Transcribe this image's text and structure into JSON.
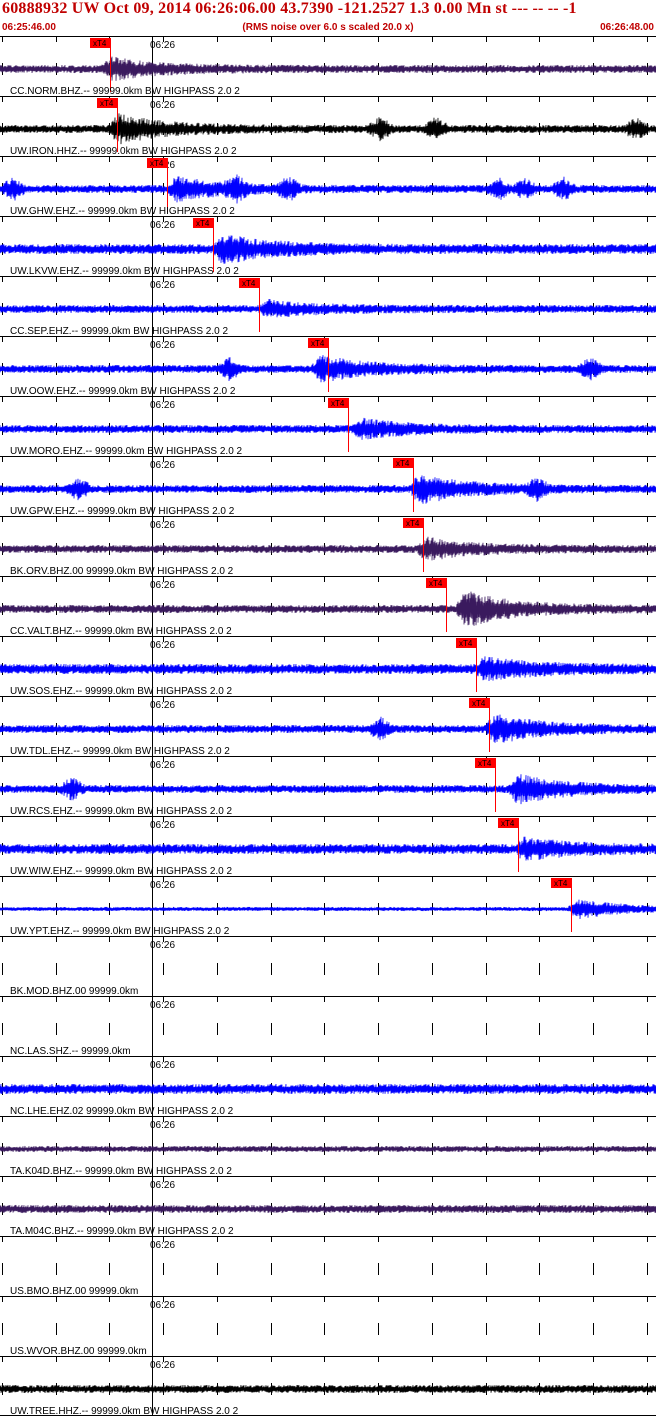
{
  "header": {
    "title": "60888932 UW Oct 09, 2014 06:26:06.00   43.7390 -121.2527  1.3 0.00 Mn st --- -- --  -1",
    "start_time": "06:25:46.00",
    "end_time": "06:26:48.00",
    "note": "(RMS noise over 6.0 s scaled 20.0 x)"
  },
  "chart_data": {
    "type": "line",
    "title": "60888932 UW Oct 09, 2014 06:26:06.00   43.7390 -121.2527  1.3 0.00 Mn st --- -- --  -1",
    "x_range": [
      "06:25:46.00",
      "06:26:48.00"
    ],
    "minute_tick_label": "06:26",
    "pick_label": "xT4",
    "colors": {
      "header": "#c00000",
      "pick": "#ff0000",
      "blue": "#0000ff",
      "purple": "#3a1a5e",
      "black": "#000000",
      "grid": "#000000"
    },
    "traces": [
      {
        "label": "CC.NORM.BHZ.-- 99999.0km BW  HIGHPASS  2.0  2",
        "color": "purple",
        "pick_x": 0.168,
        "amp": 4,
        "event_x": 0.16,
        "event_amp": 10,
        "bursts": []
      },
      {
        "label": "UW.IRON.HHZ.-- 99999.0km BW  HIGHPASS  2.0  2",
        "color": "black",
        "pick_x": 0.178,
        "amp": 4,
        "event_x": 0.17,
        "event_amp": 14,
        "bursts": [
          0.58,
          0.665,
          0.97
        ]
      },
      {
        "label": "UW.GHW.EHZ.-- 99999.0km BW  HIGHPASS  2.0  2",
        "color": "blue",
        "pick_x": 0.255,
        "amp": 4,
        "event_x": 0.26,
        "event_amp": 11,
        "bursts": [
          0.02,
          0.36,
          0.44,
          0.76,
          0.8,
          0.86
        ]
      },
      {
        "label": "UW.LKVW.EHZ.-- 99999.0km BW  HIGHPASS  2.0  2",
        "color": "blue",
        "pick_x": 0.325,
        "amp": 5,
        "event_x": 0.33,
        "event_amp": 13,
        "bursts": []
      },
      {
        "label": "CC.SEP.EHZ.-- 99999.0km BW  HIGHPASS  2.0  2",
        "color": "blue",
        "pick_x": 0.395,
        "amp": 4,
        "event_x": 0.4,
        "event_amp": 7,
        "bursts": []
      },
      {
        "label": "UW.OOW.EHZ.-- 99999.0km BW  HIGHPASS  2.0  2",
        "color": "blue",
        "pick_x": 0.5,
        "amp": 4,
        "event_x": 0.48,
        "event_amp": 12,
        "bursts": [
          0.35,
          0.9
        ]
      },
      {
        "label": "UW.MORO.EHZ.-- 99999.0km BW  HIGHPASS  2.0  2",
        "color": "blue",
        "pick_x": 0.53,
        "amp": 4,
        "event_x": 0.54,
        "event_amp": 9,
        "bursts": []
      },
      {
        "label": "UW.GPW.EHZ.-- 99999.0km BW  HIGHPASS  2.0  2",
        "color": "blue",
        "pick_x": 0.63,
        "amp": 4,
        "event_x": 0.63,
        "event_amp": 14,
        "bursts": [
          0.12,
          0.82
        ]
      },
      {
        "label": "BK.ORV.BHZ.00 99999.0km BW  HIGHPASS  2.0  2",
        "color": "purple",
        "pick_x": 0.645,
        "amp": 4,
        "event_x": 0.64,
        "event_amp": 10,
        "bursts": []
      },
      {
        "label": "CC.VALT.BHZ.-- 99999.0km BW  HIGHPASS  2.0  2",
        "color": "purple",
        "pick_x": 0.68,
        "amp": 4,
        "event_x": 0.7,
        "event_amp": 18,
        "bursts": []
      },
      {
        "label": "UW.SOS.EHZ.-- 99999.0km BW  HIGHPASS  2.0  2",
        "color": "blue",
        "pick_x": 0.725,
        "amp": 5,
        "event_x": 0.73,
        "event_amp": 10,
        "bursts": []
      },
      {
        "label": "UW.TDL.EHZ.-- 99999.0km BW  HIGHPASS  2.0  2",
        "color": "blue",
        "pick_x": 0.745,
        "amp": 4,
        "event_x": 0.745,
        "event_amp": 14,
        "bursts": [
          0.58
        ]
      },
      {
        "label": "UW.RCS.EHZ.-- 99999.0km BW  HIGHPASS  2.0  2",
        "color": "blue",
        "pick_x": 0.755,
        "amp": 4,
        "event_x": 0.78,
        "event_amp": 14,
        "bursts": [
          0.11
        ]
      },
      {
        "label": "UW.WIW.EHZ.-- 99999.0km BW  HIGHPASS  2.0  2",
        "color": "blue",
        "pick_x": 0.79,
        "amp": 5,
        "event_x": 0.79,
        "event_amp": 9,
        "bursts": []
      },
      {
        "label": "UW.YPT.EHZ.-- 99999.0km BW  HIGHPASS  2.0  2",
        "color": "blue",
        "pick_x": 0.87,
        "amp": 2,
        "event_x": 0.87,
        "event_amp": 10,
        "bursts": []
      },
      {
        "label": "BK.MOD.BHZ.00 99999.0km",
        "color": "none",
        "pick_x": null,
        "amp": 0,
        "event_x": null,
        "event_amp": 0,
        "bursts": []
      },
      {
        "label": "NC.LAS.SHZ.-- 99999.0km",
        "color": "none",
        "pick_x": null,
        "amp": 0,
        "event_x": null,
        "event_amp": 0,
        "bursts": []
      },
      {
        "label": "NC.LHE.EHZ.02 99999.0km BW  HIGHPASS  2.0  2",
        "color": "blue",
        "pick_x": null,
        "amp": 5,
        "event_x": null,
        "event_amp": 0,
        "bursts": []
      },
      {
        "label": "TA.K04D.BHZ.-- 99999.0km BW  HIGHPASS  2.0  2",
        "color": "purple",
        "pick_x": null,
        "amp": 3,
        "event_x": null,
        "event_amp": 0,
        "bursts": []
      },
      {
        "label": "TA.M04C.BHZ.-- 99999.0km BW  HIGHPASS  2.0  2",
        "color": "purple",
        "pick_x": null,
        "amp": 4,
        "event_x": null,
        "event_amp": 0,
        "bursts": []
      },
      {
        "label": "US.BMO.BHZ.00 99999.0km",
        "color": "none",
        "pick_x": null,
        "amp": 0,
        "event_x": null,
        "event_amp": 0,
        "bursts": []
      },
      {
        "label": "US.WVOR.BHZ.00 99999.0km",
        "color": "none",
        "pick_x": null,
        "amp": 0,
        "event_x": null,
        "event_amp": 0,
        "bursts": []
      },
      {
        "label": "UW.TREE.HHZ.-- 99999.0km BW  HIGHPASS  2.0  2",
        "color": "black",
        "pick_x": null,
        "amp": 4,
        "event_x": null,
        "event_amp": 0,
        "bursts": []
      }
    ]
  }
}
